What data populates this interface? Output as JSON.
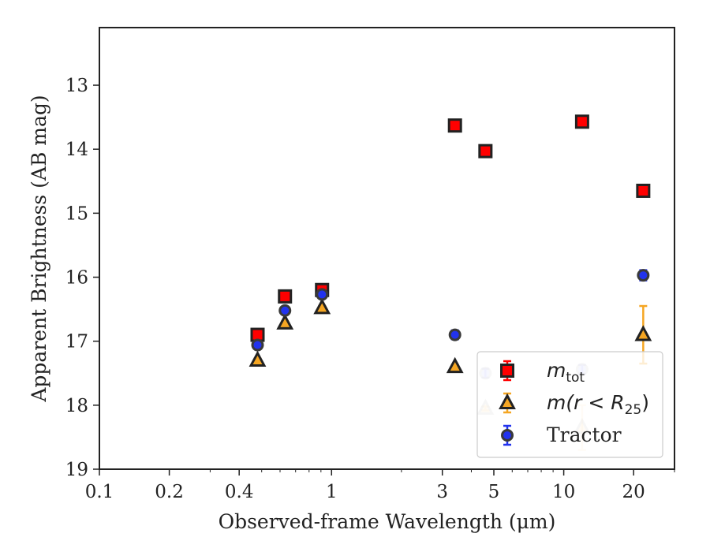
{
  "chart_data": {
    "type": "scatter",
    "title": "",
    "xlabel": "Observed-frame Wavelength (μm)",
    "ylabel": "Apparent Brightness (AB mag)",
    "xscale": "log",
    "xlim": [
      0.1,
      30
    ],
    "ylim": [
      19,
      12.1
    ],
    "y_inverted": true,
    "x_ticks": [
      {
        "value": 0.1,
        "label": "0.1"
      },
      {
        "value": 0.2,
        "label": "0.2"
      },
      {
        "value": 0.4,
        "label": "0.4"
      },
      {
        "value": 1,
        "label": "1"
      },
      {
        "value": 3,
        "label": "3"
      },
      {
        "value": 5,
        "label": "5"
      },
      {
        "value": 10,
        "label": "10"
      },
      {
        "value": 20,
        "label": "20"
      }
    ],
    "y_ticks": [
      {
        "value": 13,
        "label": "13"
      },
      {
        "value": 14,
        "label": "14"
      },
      {
        "value": 15,
        "label": "15"
      },
      {
        "value": 16,
        "label": "16"
      },
      {
        "value": 17,
        "label": "17"
      },
      {
        "value": 18,
        "label": "18"
      },
      {
        "value": 19,
        "label": "19"
      }
    ],
    "grid": false,
    "legend_position": "bottom-right",
    "series": [
      {
        "name": "m_tot",
        "legend_label": "m",
        "legend_sub": "tot",
        "marker": "square",
        "color": "#ff0000",
        "error_color": "#ff0000",
        "points": [
          {
            "x": 0.48,
            "y": 16.9,
            "err": 0.03
          },
          {
            "x": 0.63,
            "y": 16.3,
            "err": 0.03
          },
          {
            "x": 0.91,
            "y": 16.2,
            "err": 0.03
          },
          {
            "x": 3.4,
            "y": 13.63,
            "err": 0.03
          },
          {
            "x": 4.6,
            "y": 14.03,
            "err": 0.03
          },
          {
            "x": 12.0,
            "y": 13.57,
            "err": 0.03
          },
          {
            "x": 22.0,
            "y": 14.65,
            "err": 0.03
          }
        ]
      },
      {
        "name": "m(r < R_25)",
        "legend_label": "m(r < R",
        "legend_sub": "25",
        "legend_tail": ")",
        "marker": "triangle",
        "color": "#f5a623",
        "error_color": "#f5a623",
        "points": [
          {
            "x": 0.48,
            "y": 17.3,
            "err": 0.03
          },
          {
            "x": 0.63,
            "y": 16.72,
            "err": 0.03
          },
          {
            "x": 0.91,
            "y": 16.48,
            "err": 0.03
          },
          {
            "x": 3.4,
            "y": 17.4,
            "err": 0.03
          },
          {
            "x": 4.6,
            "y": 18.05,
            "err": 0.03,
            "faded": true
          },
          {
            "x": 12.0,
            "y": 18.35,
            "err": 0.35,
            "faded": true
          },
          {
            "x": 22.0,
            "y": 16.9,
            "err": 0.45
          }
        ]
      },
      {
        "name": "Tractor",
        "legend_label": "Tractor",
        "marker": "circle",
        "color": "#2233ee",
        "error_color": "#2233ee",
        "points": [
          {
            "x": 0.48,
            "y": 17.06,
            "err": 0.05
          },
          {
            "x": 0.63,
            "y": 16.52,
            "err": 0.05
          },
          {
            "x": 0.91,
            "y": 16.27,
            "err": 0.05
          },
          {
            "x": 3.4,
            "y": 16.9,
            "err": 0.07
          },
          {
            "x": 4.6,
            "y": 17.5,
            "err": 0.07,
            "faded": true
          },
          {
            "x": 12.0,
            "y": 17.44,
            "err": 0.07,
            "faded": true
          },
          {
            "x": 22.0,
            "y": 15.97,
            "err": 0.08
          }
        ]
      }
    ]
  }
}
